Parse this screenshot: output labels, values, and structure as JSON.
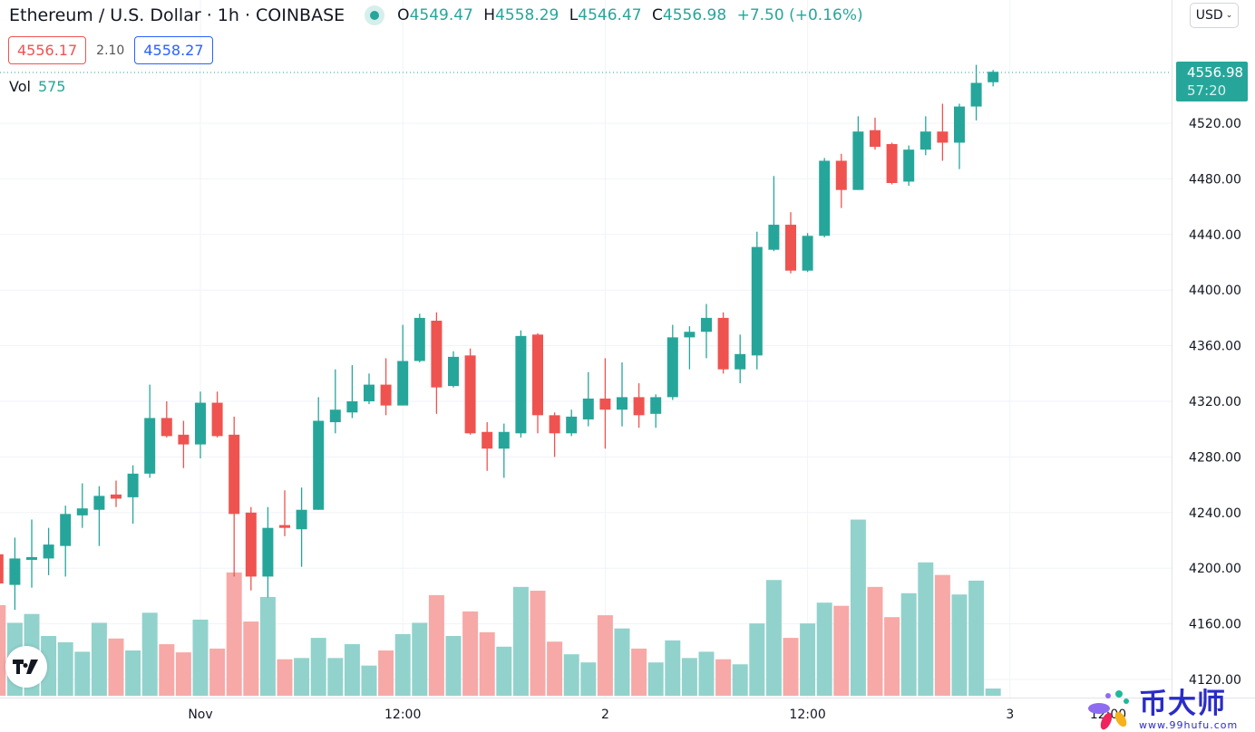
{
  "header": {
    "symbol_title": "Ethereum / U.S. Dollar · 1h · COINBASE",
    "ohlc": {
      "o_label": "O",
      "o": "4549.47",
      "h_label": "H",
      "h": "4558.29",
      "l_label": "L",
      "l": "4546.47",
      "c_label": "C",
      "c": "4556.98",
      "change": "+7.50 (+0.16%)"
    },
    "bid": "4556.17",
    "spread": "2.10",
    "ask": "4558.27",
    "vol_label": "Vol",
    "vol_value": "575",
    "currency": "USD"
  },
  "price_tag": {
    "price": "4556.98",
    "countdown": "57:20"
  },
  "colors": {
    "up": "#26a69a",
    "down": "#ef5350",
    "vol_up": "#92d2cc",
    "vol_down": "#f7a9a7",
    "grid": "#f0f3fa"
  },
  "watermark": {
    "text": "币大师",
    "url": "www.99hufu.com"
  },
  "logo": "TV",
  "chart_data": {
    "type": "candlestick",
    "title": "Ethereum / U.S. Dollar · 1h · COINBASE",
    "ylim": [
      4110,
      4575
    ],
    "grid": true,
    "y_ticks": [
      "4120.00",
      "4160.00",
      "4200.00",
      "4240.00",
      "4280.00",
      "4320.00",
      "4360.00",
      "4400.00",
      "4440.00",
      "4480.00",
      "4520.00"
    ],
    "x_ticks": [
      {
        "label": "Nov",
        "index": 12
      },
      {
        "label": "12:00",
        "index": 24
      },
      {
        "label": "2",
        "index": 36
      },
      {
        "label": "12:00",
        "index": 48
      },
      {
        "label": "3",
        "index": 60
      },
      {
        "label": "12:00",
        "index": 72
      }
    ],
    "candles": [
      {
        "o": 4210,
        "h": 4214,
        "l": 4185,
        "c": 4189,
        "v": 7200
      },
      {
        "o": 4188,
        "h": 4222,
        "l": 4170,
        "c": 4207,
        "v": 5800
      },
      {
        "o": 4206,
        "h": 4235,
        "l": 4186,
        "c": 4208,
        "v": 6500
      },
      {
        "o": 4207,
        "h": 4229,
        "l": 4195,
        "c": 4217,
        "v": 4750
      },
      {
        "o": 4216,
        "h": 4245,
        "l": 4194,
        "c": 4239,
        "v": 4250
      },
      {
        "o": 4238,
        "h": 4261,
        "l": 4229,
        "c": 4243,
        "v": 3500
      },
      {
        "o": 4242,
        "h": 4259,
        "l": 4216,
        "c": 4252,
        "v": 5800
      },
      {
        "o": 4253,
        "h": 4263,
        "l": 4244,
        "c": 4250,
        "v": 4550
      },
      {
        "o": 4251,
        "h": 4274,
        "l": 4232,
        "c": 4268,
        "v": 3600
      },
      {
        "o": 4268,
        "h": 4332,
        "l": 4265,
        "c": 4308,
        "v": 6600
      },
      {
        "o": 4308,
        "h": 4320,
        "l": 4294,
        "c": 4295,
        "v": 4100
      },
      {
        "o": 4296,
        "h": 4306,
        "l": 4272,
        "c": 4289,
        "v": 3450
      },
      {
        "o": 4289,
        "h": 4327,
        "l": 4279,
        "c": 4319,
        "v": 6050
      },
      {
        "o": 4319,
        "h": 4327,
        "l": 4294,
        "c": 4295,
        "v": 3750
      },
      {
        "o": 4296,
        "h": 4309,
        "l": 4194,
        "c": 4239,
        "v": 9800
      },
      {
        "o": 4240,
        "h": 4244,
        "l": 4184,
        "c": 4194,
        "v": 5900
      },
      {
        "o": 4194,
        "h": 4244,
        "l": 4179,
        "c": 4229,
        "v": 7850
      },
      {
        "o": 4231,
        "h": 4256,
        "l": 4223,
        "c": 4229,
        "v": 2900
      },
      {
        "o": 4228,
        "h": 4258,
        "l": 4201,
        "c": 4242,
        "v": 3000
      },
      {
        "o": 4242,
        "h": 4323,
        "l": 4242,
        "c": 4306,
        "v": 4600
      },
      {
        "o": 4305,
        "h": 4343,
        "l": 4297,
        "c": 4314,
        "v": 3000
      },
      {
        "o": 4312,
        "h": 4346,
        "l": 4308,
        "c": 4320,
        "v": 4100
      },
      {
        "o": 4320,
        "h": 4340,
        "l": 4318,
        "c": 4332,
        "v": 2400
      },
      {
        "o": 4332,
        "h": 4351,
        "l": 4310,
        "c": 4317,
        "v": 3600
      },
      {
        "o": 4317,
        "h": 4375,
        "l": 4317,
        "c": 4349,
        "v": 4900
      },
      {
        "o": 4349,
        "h": 4383,
        "l": 4348,
        "c": 4380,
        "v": 5800
      },
      {
        "o": 4378,
        "h": 4384,
        "l": 4311,
        "c": 4330,
        "v": 8000
      },
      {
        "o": 4331,
        "h": 4356,
        "l": 4330,
        "c": 4352,
        "v": 4750
      },
      {
        "o": 4353,
        "h": 4358,
        "l": 4296,
        "c": 4297,
        "v": 6700
      },
      {
        "o": 4298,
        "h": 4305,
        "l": 4270,
        "c": 4286,
        "v": 5050
      },
      {
        "o": 4286,
        "h": 4304,
        "l": 4265,
        "c": 4298,
        "v": 3900
      },
      {
        "o": 4297,
        "h": 4371,
        "l": 4294,
        "c": 4367,
        "v": 8650
      },
      {
        "o": 4368,
        "h": 4369,
        "l": 4297,
        "c": 4310,
        "v": 8350
      },
      {
        "o": 4310,
        "h": 4312,
        "l": 4280,
        "c": 4297,
        "v": 4300
      },
      {
        "o": 4297,
        "h": 4314,
        "l": 4295,
        "c": 4309,
        "v": 3300
      },
      {
        "o": 4307,
        "h": 4341,
        "l": 4302,
        "c": 4322,
        "v": 2650
      },
      {
        "o": 4322,
        "h": 4351,
        "l": 4286,
        "c": 4314,
        "v": 6400
      },
      {
        "o": 4314,
        "h": 4348,
        "l": 4302,
        "c": 4323,
        "v": 5350
      },
      {
        "o": 4323,
        "h": 4333,
        "l": 4301,
        "c": 4310,
        "v": 3750
      },
      {
        "o": 4311,
        "h": 4325,
        "l": 4301,
        "c": 4323,
        "v": 2650
      },
      {
        "o": 4323,
        "h": 4375,
        "l": 4321,
        "c": 4366,
        "v": 4400
      },
      {
        "o": 4366,
        "h": 4374,
        "l": 4343,
        "c": 4370,
        "v": 3000
      },
      {
        "o": 4370,
        "h": 4390,
        "l": 4351,
        "c": 4380,
        "v": 3500
      },
      {
        "o": 4380,
        "h": 4384,
        "l": 4340,
        "c": 4343,
        "v": 2900
      },
      {
        "o": 4343,
        "h": 4368,
        "l": 4333,
        "c": 4354,
        "v": 2500
      },
      {
        "o": 4353,
        "h": 4442,
        "l": 4343,
        "c": 4431,
        "v": 5750
      },
      {
        "o": 4429,
        "h": 4482,
        "l": 4428,
        "c": 4447,
        "v": 9200
      },
      {
        "o": 4447,
        "h": 4456,
        "l": 4412,
        "c": 4414,
        "v": 4600
      },
      {
        "o": 4414,
        "h": 4441,
        "l": 4413,
        "c": 4439,
        "v": 5750
      },
      {
        "o": 4439,
        "h": 4495,
        "l": 4438,
        "c": 4493,
        "v": 7400
      },
      {
        "o": 4493,
        "h": 4498,
        "l": 4459,
        "c": 4472,
        "v": 7150
      },
      {
        "o": 4472,
        "h": 4525,
        "l": 4472,
        "c": 4514,
        "v": 14000
      },
      {
        "o": 4515,
        "h": 4524,
        "l": 4501,
        "c": 4503,
        "v": 8650
      },
      {
        "o": 4505,
        "h": 4506,
        "l": 4476,
        "c": 4477,
        "v": 6250
      },
      {
        "o": 4478,
        "h": 4504,
        "l": 4475,
        "c": 4501,
        "v": 8150
      },
      {
        "o": 4501,
        "h": 4525,
        "l": 4497,
        "c": 4514,
        "v": 10600
      },
      {
        "o": 4514,
        "h": 4534,
        "l": 4493,
        "c": 4506,
        "v": 9600
      },
      {
        "o": 4506,
        "h": 4534,
        "l": 4487,
        "c": 4532,
        "v": 8050
      },
      {
        "o": 4532,
        "h": 4562,
        "l": 4522,
        "c": 4549,
        "v": 9150
      },
      {
        "o": 4549.47,
        "h": 4558.29,
        "l": 4546.47,
        "c": 4556.98,
        "v": 575
      }
    ]
  }
}
